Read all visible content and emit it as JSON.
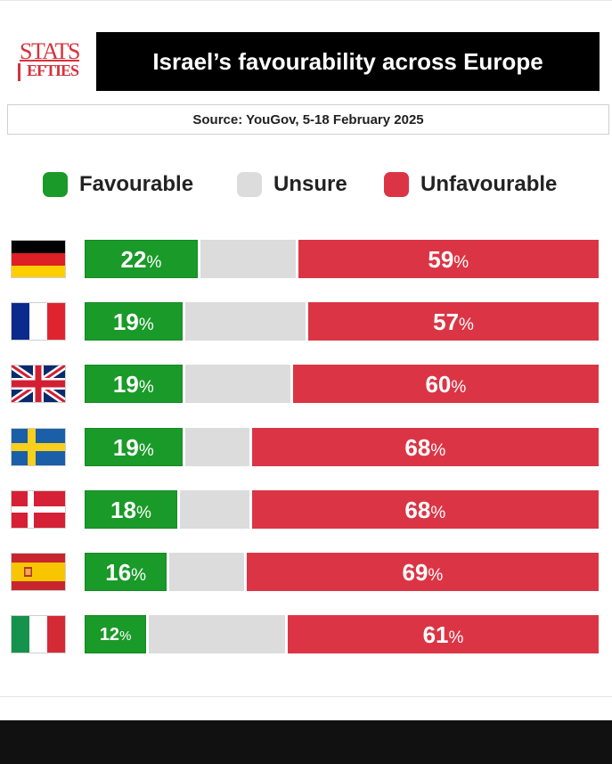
{
  "brand": {
    "logo_top": "STATS",
    "logo_bottom": "EFTIES"
  },
  "title": "Israel’s favourability across Europe",
  "source": "Source: YouGov, 5-18 February 2025",
  "colors": {
    "favourable": "#1a9a29",
    "unsure": "#dcdcdc",
    "unfavourable": "#db3545"
  },
  "legend": [
    {
      "label": "Favourable",
      "color": "#1a9a29"
    },
    {
      "label": "Unsure",
      "color": "#dcdcdc"
    },
    {
      "label": "Unfavourable",
      "color": "#db3545"
    }
  ],
  "chart_data": {
    "type": "bar",
    "stacked": true,
    "orientation": "horizontal",
    "categories": [
      "Germany",
      "France",
      "United Kingdom",
      "Sweden",
      "Denmark",
      "Spain",
      "Italy"
    ],
    "category_icons": [
      "germany-flag-icon",
      "france-flag-icon",
      "uk-flag-icon",
      "sweden-flag-icon",
      "denmark-flag-icon",
      "spain-flag-icon",
      "italy-flag-icon"
    ],
    "series": [
      {
        "name": "Favourable",
        "values": [
          22,
          19,
          19,
          19,
          18,
          16,
          12
        ]
      },
      {
        "name": "Unsure",
        "values": [
          19,
          24,
          21,
          13,
          14,
          15,
          27
        ]
      },
      {
        "name": "Unfavourable",
        "values": [
          59,
          57,
          60,
          68,
          68,
          69,
          61
        ]
      }
    ],
    "labels": {
      "favourable": [
        "22",
        "19",
        "19",
        "19",
        "18",
        "16",
        "12"
      ],
      "unfavourable": [
        "59",
        "57",
        "60",
        "68",
        "68",
        "69",
        "61"
      ]
    },
    "percent_sign": "%",
    "xlim": [
      0,
      100
    ],
    "legend_position": "top"
  }
}
